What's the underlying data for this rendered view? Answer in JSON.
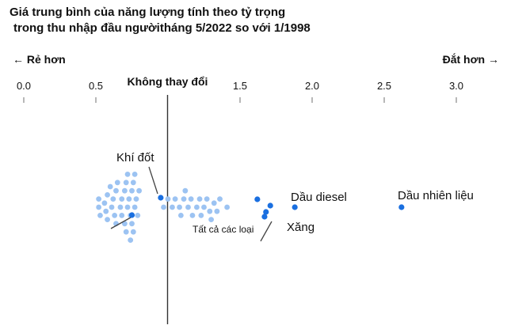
{
  "header": {
    "title_line1": "Giá trung bình của năng lượng tính theo tỷ trọng",
    "title_line2": "trong thu nhập đầu ngườitháng 5/2022 so với 1/1998"
  },
  "directions": {
    "left": "← Rẻ hơn",
    "right": "Đắt hơn →"
  },
  "colors": {
    "highlight": "#1a6fe0",
    "other": "#9cc3f2",
    "reference_line": "#333333",
    "leader": "#444444",
    "tick": "#888888"
  },
  "chart_data": {
    "type": "scatter",
    "title": "Giá trung bình của năng lượng tính theo tỷ trọng trong thu nhập đầu ngườitháng 5/2022 so với 1/1998",
    "xlim": [
      0,
      3.2
    ],
    "xticks": [
      {
        "value": 0.0,
        "label": "0.0"
      },
      {
        "value": 0.5,
        "label": "0.5"
      },
      {
        "value": 1.5,
        "label": "1.5"
      },
      {
        "value": 2.0,
        "label": "2.0"
      },
      {
        "value": 2.5,
        "label": "2.5"
      },
      {
        "value": 3.0,
        "label": "3.0"
      }
    ],
    "reference": {
      "value": 1.0,
      "label": "Không thay đổi"
    },
    "grid": false,
    "legend": "none",
    "highlighted": [
      {
        "label": "Khí đốt",
        "x": 0.95
      },
      {
        "label": "Dầu diesel",
        "x": 1.88
      },
      {
        "label": "Dầu nhiên liệu",
        "x": 2.62
      },
      {
        "label": "Tất cả các loại",
        "x": 0.75
      },
      {
        "label": "Xăng",
        "x": 1.68
      },
      {
        "x": 1.62
      },
      {
        "x": 1.67
      },
      {
        "x": 1.71
      }
    ],
    "annotation_labels": [
      "Khí đốt",
      "Dầu diesel",
      "Dầu nhiên liệu",
      "Tất cả các loại",
      "Xăng"
    ],
    "other_points": [
      0.52,
      0.52,
      0.53,
      0.56,
      0.57,
      0.58,
      0.58,
      0.6,
      0.61,
      0.62,
      0.63,
      0.64,
      0.64,
      0.65,
      0.67,
      0.68,
      0.68,
      0.7,
      0.7,
      0.71,
      0.71,
      0.72,
      0.72,
      0.73,
      0.74,
      0.74,
      0.75,
      0.75,
      0.76,
      0.76,
      0.77,
      0.77,
      0.78,
      0.79,
      0.8,
      0.97,
      1.0,
      1.03,
      1.05,
      1.08,
      1.09,
      1.11,
      1.12,
      1.14,
      1.16,
      1.17,
      1.2,
      1.22,
      1.23,
      1.25,
      1.27,
      1.29,
      1.3,
      1.32,
      1.34,
      1.36,
      1.41
    ]
  }
}
